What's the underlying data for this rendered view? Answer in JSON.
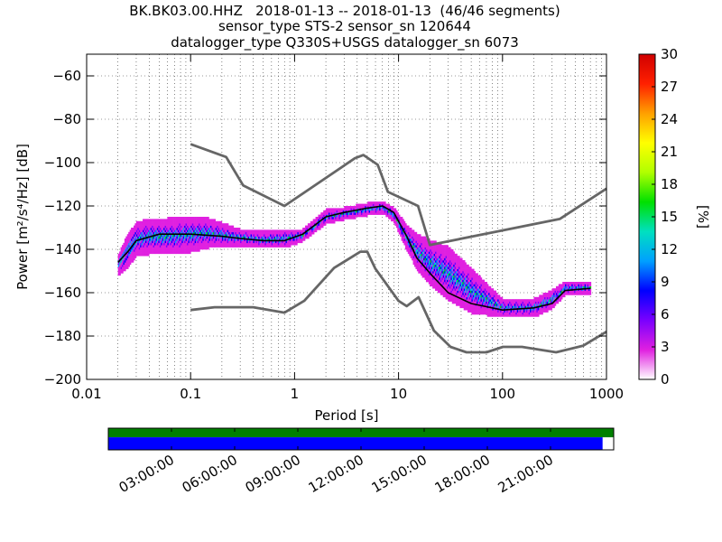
{
  "header": {
    "line1": "BK.BK03.00.HHZ   2018-01-13 -- 2018-01-13  (46/46 segments)",
    "line2": "sensor_type STS-2 sensor_sn 120644",
    "line3": "datalogger_type Q330S+USGS datalogger_sn 6073"
  },
  "chart_data": [
    {
      "type": "heatmap",
      "xlabel": "Period [s]",
      "ylabel": "Power [m²/s⁴/Hz] [dB]",
      "xscale": "log",
      "xlim": [
        0.01,
        1000
      ],
      "ylim": [
        -200,
        -50
      ],
      "x_ticks": [
        0.01,
        0.1,
        1,
        10,
        100,
        1000
      ],
      "x_tick_labels": [
        "0.01",
        "0.1",
        "1",
        "10",
        "100",
        "1000"
      ],
      "y_ticks": [
        -200,
        -180,
        -160,
        -140,
        -120,
        -100,
        -80,
        -60
      ],
      "y_tick_labels": [
        "−200",
        "−180",
        "−160",
        "−140",
        "−120",
        "−100",
        "−80",
        "−60"
      ],
      "grid": true,
      "colorbar": {
        "label": "[%]",
        "min": 0,
        "max": 30,
        "ticks": [
          0,
          3,
          6,
          9,
          12,
          15,
          18,
          21,
          24,
          27,
          30
        ],
        "tick_labels": [
          "0",
          "3",
          "6",
          "9",
          "12",
          "15",
          "18",
          "21",
          "24",
          "27",
          "30"
        ],
        "colors": [
          "#ffffff",
          "#e020e0",
          "#7a00ff",
          "#0000ff",
          "#00a0ff",
          "#00e0c0",
          "#00e000",
          "#b0ff00",
          "#ffff00",
          "#ffa000",
          "#ff2000",
          "#d00000"
        ]
      },
      "density": [
        {
          "x": 0.02,
          "low": -152,
          "high": -143
        },
        {
          "x": 0.025,
          "low": -148,
          "high": -133
        },
        {
          "x": 0.03,
          "low": -143,
          "high": -128
        },
        {
          "x": 0.04,
          "low": -142,
          "high": -126
        },
        {
          "x": 0.06,
          "low": -142,
          "high": -126
        },
        {
          "x": 0.1,
          "low": -141,
          "high": -125
        },
        {
          "x": 0.15,
          "low": -139,
          "high": -126
        },
        {
          "x": 0.2,
          "low": -139,
          "high": -128
        },
        {
          "x": 0.3,
          "low": -138,
          "high": -131
        },
        {
          "x": 0.5,
          "low": -139,
          "high": -132
        },
        {
          "x": 0.8,
          "low": -139,
          "high": -131
        },
        {
          "x": 1.2,
          "low": -136,
          "high": -131
        },
        {
          "x": 2,
          "low": -128,
          "high": -122
        },
        {
          "x": 3,
          "low": -126,
          "high": -121
        },
        {
          "x": 5,
          "low": -124,
          "high": -119
        },
        {
          "x": 7,
          "low": -123,
          "high": -118
        },
        {
          "x": 9,
          "low": -127,
          "high": -121
        },
        {
          "x": 12,
          "low": -140,
          "high": -129
        },
        {
          "x": 15,
          "low": -149,
          "high": -133
        },
        {
          "x": 20,
          "low": -156,
          "high": -136
        },
        {
          "x": 30,
          "low": -163,
          "high": -139
        },
        {
          "x": 50,
          "low": -169,
          "high": -149
        },
        {
          "x": 70,
          "low": -170,
          "high": -156
        },
        {
          "x": 100,
          "low": -171,
          "high": -163
        },
        {
          "x": 200,
          "low": -171,
          "high": -163
        },
        {
          "x": 300,
          "low": -167,
          "high": -159
        },
        {
          "x": 400,
          "low": -161,
          "high": -155
        },
        {
          "x": 700,
          "low": -160,
          "high": -155
        }
      ],
      "series": [
        {
          "kind": "mean",
          "color": "#000000",
          "points": [
            [
              0.02,
              -146
            ],
            [
              0.025,
              -141
            ],
            [
              0.03,
              -136
            ],
            [
              0.05,
              -133
            ],
            [
              0.1,
              -133
            ],
            [
              0.2,
              -134
            ],
            [
              0.3,
              -135
            ],
            [
              0.5,
              -136
            ],
            [
              0.8,
              -136
            ],
            [
              1.2,
              -133
            ],
            [
              2,
              -125
            ],
            [
              3,
              -123
            ],
            [
              5,
              -121
            ],
            [
              7,
              -120
            ],
            [
              9,
              -123
            ],
            [
              12,
              -134
            ],
            [
              15,
              -144
            ],
            [
              20,
              -151
            ],
            [
              30,
              -160
            ],
            [
              50,
              -165
            ],
            [
              100,
              -168
            ],
            [
              200,
              -167
            ],
            [
              300,
              -165
            ],
            [
              400,
              -159
            ],
            [
              700,
              -158
            ]
          ]
        },
        {
          "kind": "noise-model-high",
          "color": "#666666",
          "points": [
            [
              0.1,
              -91.5
            ],
            [
              0.22,
              -97.4
            ],
            [
              0.32,
              -110.5
            ],
            [
              0.8,
              -120
            ],
            [
              3.8,
              -98
            ],
            [
              4.6,
              -96.5
            ],
            [
              6.3,
              -101
            ],
            [
              7.9,
              -113.5
            ],
            [
              15.4,
              -120
            ],
            [
              20,
              -138
            ],
            [
              354.8,
              -126
            ],
            [
              1000,
              -112
            ]
          ]
        },
        {
          "kind": "noise-model-low",
          "color": "#666666",
          "points": [
            [
              0.1,
              -168
            ],
            [
              0.17,
              -166.7
            ],
            [
              0.4,
              -166.7
            ],
            [
              0.8,
              -169.2
            ],
            [
              1.24,
              -163.7
            ],
            [
              2.4,
              -148.6
            ],
            [
              4.3,
              -141.1
            ],
            [
              5,
              -141.1
            ],
            [
              6,
              -149
            ],
            [
              10,
              -163.8
            ],
            [
              12,
              -166.2
            ],
            [
              15.6,
              -162.1
            ],
            [
              21.9,
              -177.5
            ],
            [
              31.6,
              -185
            ],
            [
              45,
              -187.5
            ],
            [
              70,
              -187.5
            ],
            [
              101,
              -185
            ],
            [
              154,
              -185
            ],
            [
              328,
              -187.5
            ],
            [
              600,
              -184.4
            ],
            [
              1000,
              -178
            ]
          ]
        }
      ]
    },
    {
      "type": "timeline",
      "ticks": [
        "03:00:00",
        "06:00:00",
        "09:00:00",
        "12:00:00",
        "15:00:00",
        "18:00:00",
        "21:00:00"
      ],
      "coverage_fraction": 0.978,
      "top_color": "#008000",
      "coverage_color": "#0000ff"
    }
  ]
}
